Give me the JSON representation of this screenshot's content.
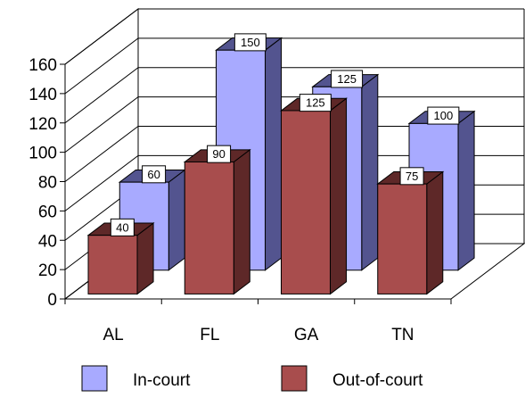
{
  "chart_data": {
    "type": "bar",
    "three_d": true,
    "categories": [
      "AL",
      "FL",
      "GA",
      "TN"
    ],
    "series": [
      {
        "name": "In-court",
        "values": [
          60,
          150,
          125,
          100
        ],
        "face_color": "#a8aaff",
        "side_color": "#53548f"
      },
      {
        "name": "Out-of-court",
        "values": [
          40,
          90,
          125,
          75
        ],
        "face_color": "#a84d4d",
        "side_color": "#5e2828"
      }
    ],
    "y_ticks": [
      "0",
      "20",
      "40",
      "60",
      "80",
      "100",
      "120",
      "140",
      "160"
    ],
    "ylim": [
      0,
      160
    ],
    "grid": true,
    "legend_position": "bottom",
    "data_labels": true
  }
}
